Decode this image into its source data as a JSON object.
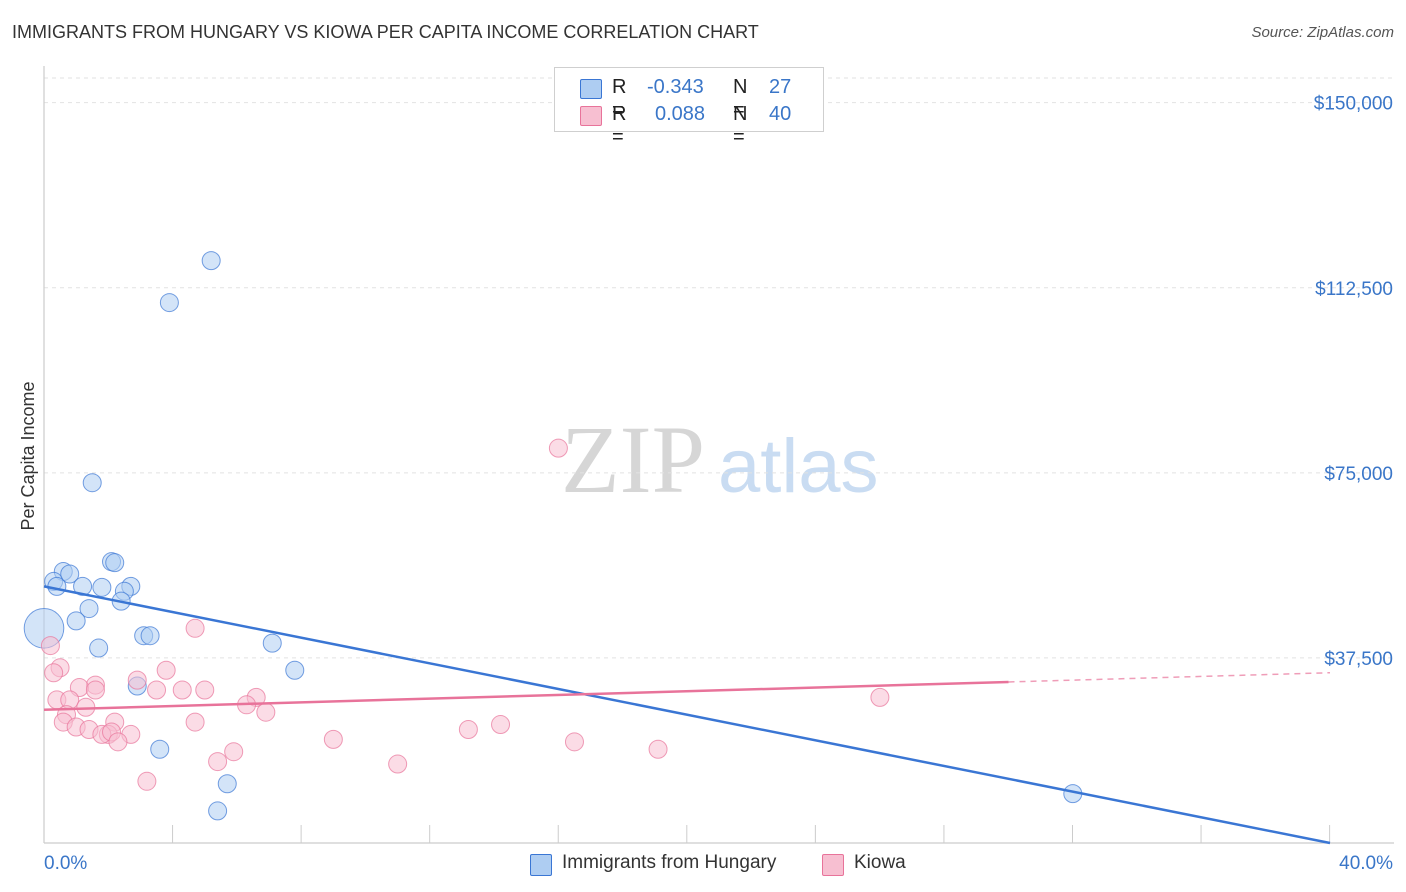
{
  "chart_data": {
    "type": "scatter",
    "title": "IMMIGRANTS FROM HUNGARY VS KIOWA PER CAPITA INCOME CORRELATION CHART",
    "source": "Source: ZipAtlas.com",
    "xlabel": "",
    "ylabel": "Per Capita Income",
    "xlim": [
      0,
      40
    ],
    "ylim": [
      0,
      155000
    ],
    "x_tick_labels": [
      "0.0%",
      "40.0%"
    ],
    "y_ticks": [
      37500,
      75000,
      112500,
      150000
    ],
    "y_tick_labels": [
      "$37,500",
      "$75,000",
      "$112,500",
      "$150,000"
    ],
    "watermark": {
      "part1": "ZIP",
      "part2": "atlas"
    },
    "legend_stats": [
      {
        "r_label": "R =",
        "r_value": "-0.343",
        "n_label": "N =",
        "n_value": "27"
      },
      {
        "r_label": "R =",
        "r_value": "0.088",
        "n_label": "N =",
        "n_value": "40"
      }
    ],
    "series": [
      {
        "name": "Immigrants from Hungary",
        "color": "#3a76d4",
        "fill": "#aecdf2",
        "trend": {
          "x0": 0,
          "y0": 52000,
          "x1": 40,
          "y1": 0,
          "solid_until": 40
        },
        "points": [
          {
            "x": 5.2,
            "y": 118000
          },
          {
            "x": 3.9,
            "y": 109500
          },
          {
            "x": 1.5,
            "y": 73000
          },
          {
            "x": 2.1,
            "y": 57000
          },
          {
            "x": 2.2,
            "y": 56800
          },
          {
            "x": 0.6,
            "y": 55000
          },
          {
            "x": 0.8,
            "y": 54500
          },
          {
            "x": 0.3,
            "y": 53000
          },
          {
            "x": 0.4,
            "y": 52000
          },
          {
            "x": 1.2,
            "y": 52000
          },
          {
            "x": 1.8,
            "y": 51800
          },
          {
            "x": 2.7,
            "y": 52000
          },
          {
            "x": 2.5,
            "y": 51000
          },
          {
            "x": 2.4,
            "y": 49000
          },
          {
            "x": 1.4,
            "y": 47500
          },
          {
            "x": 1.0,
            "y": 45000
          },
          {
            "x": 0.0,
            "y": 43500,
            "size": 2.2
          },
          {
            "x": 3.1,
            "y": 42000
          },
          {
            "x": 3.3,
            "y": 42000
          },
          {
            "x": 1.7,
            "y": 39500
          },
          {
            "x": 7.1,
            "y": 40500
          },
          {
            "x": 7.8,
            "y": 35000
          },
          {
            "x": 2.9,
            "y": 31800
          },
          {
            "x": 3.6,
            "y": 19000
          },
          {
            "x": 5.7,
            "y": 12000
          },
          {
            "x": 5.4,
            "y": 6500
          },
          {
            "x": 32.0,
            "y": 10000
          }
        ]
      },
      {
        "name": "Kiowa",
        "color": "#e8739a",
        "fill": "#f7bfd1",
        "trend": {
          "x0": 0,
          "y0": 27000,
          "x1": 40,
          "y1": 34500,
          "solid_until": 30
        },
        "points": [
          {
            "x": 16.0,
            "y": 80000
          },
          {
            "x": 4.7,
            "y": 43500
          },
          {
            "x": 0.2,
            "y": 40000
          },
          {
            "x": 0.5,
            "y": 35500
          },
          {
            "x": 0.3,
            "y": 34500
          },
          {
            "x": 3.8,
            "y": 35000
          },
          {
            "x": 2.9,
            "y": 33000
          },
          {
            "x": 1.6,
            "y": 32000
          },
          {
            "x": 1.1,
            "y": 31500
          },
          {
            "x": 1.6,
            "y": 31000
          },
          {
            "x": 3.5,
            "y": 31000
          },
          {
            "x": 4.3,
            "y": 31000
          },
          {
            "x": 5.0,
            "y": 31000
          },
          {
            "x": 6.6,
            "y": 29500
          },
          {
            "x": 0.4,
            "y": 29000
          },
          {
            "x": 0.8,
            "y": 29000
          },
          {
            "x": 6.3,
            "y": 28000
          },
          {
            "x": 1.3,
            "y": 27500
          },
          {
            "x": 0.7,
            "y": 26000
          },
          {
            "x": 6.9,
            "y": 26500
          },
          {
            "x": 2.2,
            "y": 24500
          },
          {
            "x": 4.7,
            "y": 24500
          },
          {
            "x": 0.6,
            "y": 24500
          },
          {
            "x": 14.2,
            "y": 24000
          },
          {
            "x": 1.0,
            "y": 23500
          },
          {
            "x": 1.4,
            "y": 23000
          },
          {
            "x": 13.2,
            "y": 23000
          },
          {
            "x": 2.0,
            "y": 22000
          },
          {
            "x": 1.8,
            "y": 22000
          },
          {
            "x": 2.7,
            "y": 22000
          },
          {
            "x": 2.1,
            "y": 22500
          },
          {
            "x": 9.0,
            "y": 21000
          },
          {
            "x": 16.5,
            "y": 20500
          },
          {
            "x": 2.3,
            "y": 20500
          },
          {
            "x": 19.1,
            "y": 19000
          },
          {
            "x": 5.9,
            "y": 18500
          },
          {
            "x": 5.4,
            "y": 16500
          },
          {
            "x": 11.0,
            "y": 16000
          },
          {
            "x": 3.2,
            "y": 12500
          },
          {
            "x": 26.0,
            "y": 29500
          }
        ]
      }
    ]
  }
}
